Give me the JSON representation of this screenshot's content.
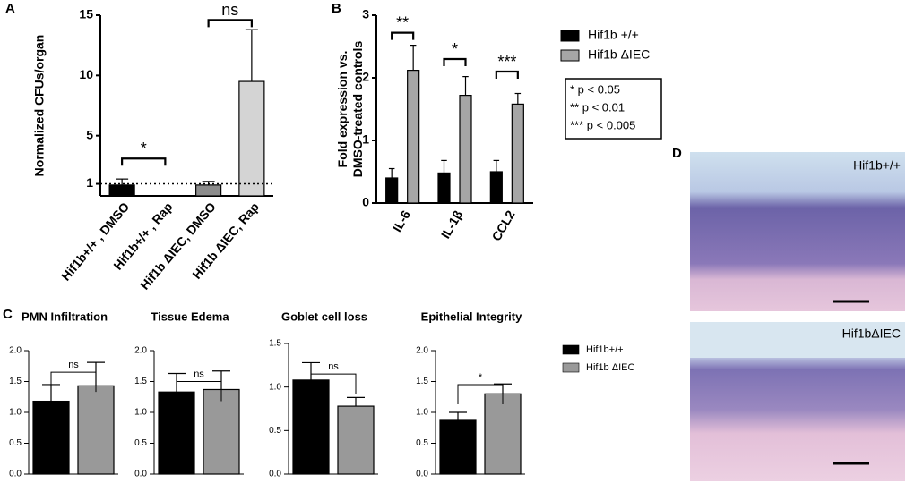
{
  "panel_labels": [
    "A",
    "B",
    "C",
    "D"
  ],
  "chart_data": [
    {
      "type": "bar",
      "ylabel": [
        "Normalized CFUs/organ"
      ],
      "categories": [
        "Hif1b+/+ , DMSO",
        "Hif1b+/+ , Rap",
        "Hif1b ΔIEC, DMSO",
        "Hif1b ΔIEC, Rap"
      ],
      "values": [
        0.9,
        0.03,
        0.9,
        9.5
      ],
      "errors": [
        0.5,
        0,
        0.3,
        4.3
      ],
      "colors": [
        "#000000",
        "#d9d9d9",
        "#8c8c8c",
        "#d4d4d4"
      ],
      "reference_line": 1,
      "ylim": [
        0,
        15
      ],
      "yticks": [
        1,
        5,
        10,
        15
      ],
      "annotations": [
        "*",
        "ns"
      ]
    },
    {
      "type": "grouped_bar",
      "ylabel": [
        "Fold expression vs.",
        "DMSO-treated controls"
      ],
      "categories": [
        "IL-6",
        "IL-1β",
        "CCL2"
      ],
      "series": [
        {
          "name": "Hif1b +/+",
          "color": "#000000",
          "values": [
            0.4,
            0.48,
            0.5
          ],
          "errors": [
            0.15,
            0.2,
            0.18
          ]
        },
        {
          "name": "Hif1b ΔIEC",
          "color": "#a6a6a6",
          "values": [
            2.12,
            1.72,
            1.58
          ],
          "errors": [
            0.4,
            0.3,
            0.17
          ]
        }
      ],
      "ylim": [
        0,
        3
      ],
      "yticks": [
        0,
        1,
        2,
        3
      ],
      "annotations": [
        "**",
        "*",
        "***"
      ],
      "significance_key": [
        "* p < 0.05",
        "** p < 0.01",
        "*** p < 0.005"
      ]
    },
    {
      "type": "grouped_bar",
      "title": "PMN Infiltration",
      "series": [
        {
          "name": "Hif1b+/+",
          "color": "#000000",
          "values": [
            1.18
          ],
          "errors": [
            0.27
          ]
        },
        {
          "name": "Hif1b ΔIEC",
          "color": "#999999",
          "values": [
            1.43
          ],
          "errors": [
            0.38
          ]
        }
      ],
      "ylim": [
        0,
        2
      ],
      "yticks": [
        {
          "value": 0,
          "label": "0.0"
        },
        0.5,
        {
          "value": 1,
          "label": "1.0"
        },
        1.5,
        {
          "value": 2,
          "label": "2.0"
        }
      ],
      "annotations": [
        "ns"
      ]
    },
    {
      "type": "grouped_bar",
      "title": "Tissue Edema",
      "series": [
        {
          "name": "Hif1b+/+",
          "color": "#000000",
          "values": [
            1.33
          ],
          "errors": [
            0.3
          ]
        },
        {
          "name": "Hif1b ΔIEC",
          "color": "#999999",
          "values": [
            1.37
          ],
          "errors": [
            0.3
          ]
        }
      ],
      "ylim": [
        0,
        2
      ],
      "yticks": [
        {
          "value": 0,
          "label": "0.0"
        },
        0.5,
        {
          "value": 1,
          "label": "1.0"
        },
        1.5,
        {
          "value": 2,
          "label": "2.0"
        }
      ],
      "annotations": [
        "ns"
      ]
    },
    {
      "type": "grouped_bar",
      "title": "Goblet cell loss",
      "series": [
        {
          "name": "Hif1b+/+",
          "color": "#000000",
          "values": [
            1.08
          ],
          "errors": [
            0.2
          ]
        },
        {
          "name": "Hif1b ΔIEC",
          "color": "#999999",
          "values": [
            0.78
          ],
          "errors": [
            0.1
          ]
        }
      ],
      "ylim": [
        0,
        1.5
      ],
      "yticks": [
        {
          "value": 0,
          "label": "0.0"
        },
        0.5,
        {
          "value": 1,
          "label": "1.0"
        },
        1.5
      ],
      "annotations": [
        "ns"
      ]
    },
    {
      "type": "grouped_bar",
      "title": "Epithelial Integrity",
      "series": [
        {
          "name": "Hif1b+/+",
          "color": "#000000",
          "values": [
            0.87
          ],
          "errors": [
            0.13
          ]
        },
        {
          "name": "Hif1b ΔIEC",
          "color": "#999999",
          "values": [
            1.3
          ],
          "errors": [
            0.16
          ]
        }
      ],
      "ylim": [
        0,
        2
      ],
      "yticks": [
        {
          "value": 0,
          "label": "0.0"
        },
        0.5,
        {
          "value": 1,
          "label": "1.0"
        },
        1.5,
        {
          "value": 2,
          "label": "2.0"
        }
      ],
      "annotations": [
        "*"
      ]
    }
  ],
  "histology": {
    "labels": [
      "Hif1b+/+",
      "Hif1bΔIEC"
    ]
  }
}
